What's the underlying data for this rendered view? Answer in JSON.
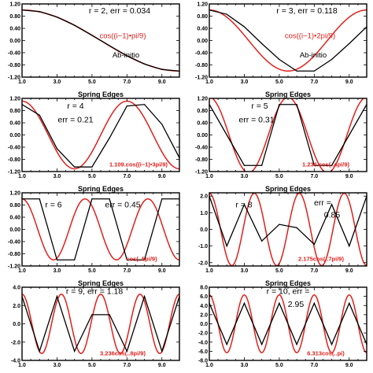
{
  "figure": {
    "accent_red": "#e0201c",
    "line_black": "#000000"
  },
  "chart_data": [
    {
      "type": "line",
      "xlim": [
        1.0,
        10.0
      ],
      "ylim": [
        -1.2,
        1.2
      ],
      "xticks": [
        "1.0",
        "3.0",
        "5.0",
        "7.0",
        "9.0"
      ],
      "yticks": [
        "1.20",
        "0.80",
        "0.40",
        "0.00",
        "-0.40",
        "-0.80",
        "-1.20"
      ],
      "xlabel": "",
      "ann1": "r = 2, err = 0.034",
      "ann2": "",
      "legend_red": "cos((i−1)•pi/9)",
      "legend_black": "Ab-initio",
      "red": {
        "amp": 1.0,
        "k": 1
      },
      "black": [
        1.0,
        0.95,
        0.77,
        0.5,
        0.17,
        -0.17,
        -0.5,
        -0.77,
        -0.95,
        -1.0
      ]
    },
    {
      "type": "line",
      "xlim": [
        1.0,
        10.0
      ],
      "ylim": [
        -1.2,
        1.2
      ],
      "xticks": [
        "1.0",
        "3.0",
        "5.0",
        "7.0",
        "9.0"
      ],
      "yticks": [
        "1.20",
        "0.80",
        "0.40",
        "0.00",
        "-0.40",
        "-0.80",
        "-1.20"
      ],
      "xlabel": "",
      "ann1": "r = 3, err = 0.118",
      "ann2": "",
      "legend_red": "cos((i−1)•2pi/9)",
      "legend_black": "Ab-initio",
      "red": {
        "amp": 1.0,
        "k": 2
      },
      "black": [
        1.0,
        0.86,
        0.45,
        -0.1,
        -0.62,
        -1.0,
        -1.0,
        -0.62,
        -0.1,
        0.45
      ]
    },
    {
      "type": "line",
      "xlim": [
        1.0,
        10.0
      ],
      "ylim": [
        -1.2,
        1.2
      ],
      "xticks": [
        "1.0",
        "3.0",
        "5.0",
        "7.0",
        "9.0"
      ],
      "yticks": [
        "1.20",
        "0.80",
        "0.40",
        "0.00",
        "-0.40",
        "-0.80",
        "-1.20"
      ],
      "xlabel": "Spring Edges",
      "ann1": "r = 4",
      "ann2": "err = 0.21",
      "legend_red": "1.109.cos((i−1)•3pi/9)",
      "legend_black": "",
      "red": {
        "amp": 1.109,
        "k": 3
      },
      "black": [
        1.0,
        0.65,
        -0.45,
        -1.05,
        -1.05,
        -0.1,
        0.95,
        1.0,
        0.35,
        -0.75
      ]
    },
    {
      "type": "line",
      "xlim": [
        1.0,
        10.0
      ],
      "ylim": [
        -1.2,
        1.2
      ],
      "xticks": [
        "1.0",
        "3.0",
        "5.0",
        "7.0",
        "9.0"
      ],
      "yticks": [
        "1.20",
        "0.80",
        "0.40",
        "0.00",
        "-0.40",
        "-0.80",
        "-1.20"
      ],
      "xlabel": "Spring Edges",
      "ann1": "r = 5",
      "ann2": "err = 0.31",
      "legend_red": "1.236.cos(..4pi/9)",
      "legend_black": "",
      "red": {
        "amp": 1.236,
        "k": 4
      },
      "black": [
        1.0,
        0.0,
        -1.0,
        -1.0,
        1.0,
        1.0,
        -1.0,
        -1.0,
        0.0,
        1.0
      ]
    },
    {
      "type": "line",
      "xlim": [
        1.0,
        10.0
      ],
      "ylim": [
        -1.2,
        1.2
      ],
      "xticks": [
        "1.0",
        "3.0",
        "5.0",
        "7.0",
        "9.0"
      ],
      "yticks": [
        "1.20",
        "0.80",
        "0.40",
        "0.00",
        "-0.40",
        "-0.80",
        "-1.20"
      ],
      "xlabel": "Spring Edges",
      "ann1": "r = 6",
      "ann2": "err = 0.45",
      "legend_red": "cos(..5pi/9)",
      "legend_black": "",
      "red": {
        "amp": 1.0,
        "k": 5
      },
      "black": [
        1.0,
        1.0,
        -1.0,
        -1.0,
        1.0,
        1.0,
        -1.0,
        -1.0,
        1.0,
        1.0
      ]
    },
    {
      "type": "line",
      "xlim": [
        1.0,
        10.0
      ],
      "ylim": [
        -2.2,
        2.2
      ],
      "xticks": [
        "1.0",
        "3.0",
        "5.0",
        "7.0",
        "9.0"
      ],
      "yticks": [
        "2.0",
        "1.0",
        "0.0",
        "-1.0",
        "-2.0"
      ],
      "xlabel": "Spring Edges",
      "ann1": "r = 8",
      "ann2": "err =",
      "ann3": "0.85",
      "legend_red": "2.175cos(..7pi/9)",
      "legend_black": "",
      "red": {
        "amp": 2.175,
        "k": 7
      },
      "black": [
        2.0,
        -1.0,
        1.5,
        -0.7,
        0.3,
        0.1,
        -0.9,
        1.5,
        -1.0,
        2.0
      ]
    },
    {
      "type": "line",
      "xlim": [
        1.0,
        10.0
      ],
      "ylim": [
        -4.0,
        4.0
      ],
      "xticks": [
        "1.0",
        "3.0",
        "5.0",
        "7.0",
        "9.0"
      ],
      "yticks": [
        "4.0",
        "2.0",
        "0.0",
        "-2.0",
        "-4.0"
      ],
      "xlabel": "Spring Edges",
      "ann1": "r = 9, err = 1.18",
      "ann2": "",
      "legend_red": "3.236cos(..8pi/9)",
      "legend_black": "",
      "red": {
        "amp": 3.236,
        "k": 8
      },
      "black": [
        3.0,
        -3.0,
        3.0,
        -3.0,
        1.0,
        1.0,
        -3.0,
        3.0,
        -3.0,
        3.0
      ]
    },
    {
      "type": "line",
      "xlim": [
        1.0,
        10.0
      ],
      "ylim": [
        -8.0,
        8.0
      ],
      "xticks": [
        "1.0",
        "3.0",
        "5.0",
        "7.0",
        "9.0"
      ],
      "yticks": [
        "8.0",
        "6.0",
        "4.0",
        "2.0",
        "0.0",
        "-2.0",
        "-4.0",
        "-6.0",
        "-8.0"
      ],
      "xlabel": "Spring Edges",
      "ann1": "r = 10, err =",
      "ann2": "2.95",
      "legend_red": "6.313cos(..pi)",
      "legend_black": "",
      "red": {
        "amp": 6.313,
        "k": 9
      },
      "black": [
        4.5,
        -4.5,
        4.5,
        -4.5,
        4.5,
        -4.5,
        4.5,
        -4.5,
        4.5,
        -4.5
      ]
    }
  ]
}
